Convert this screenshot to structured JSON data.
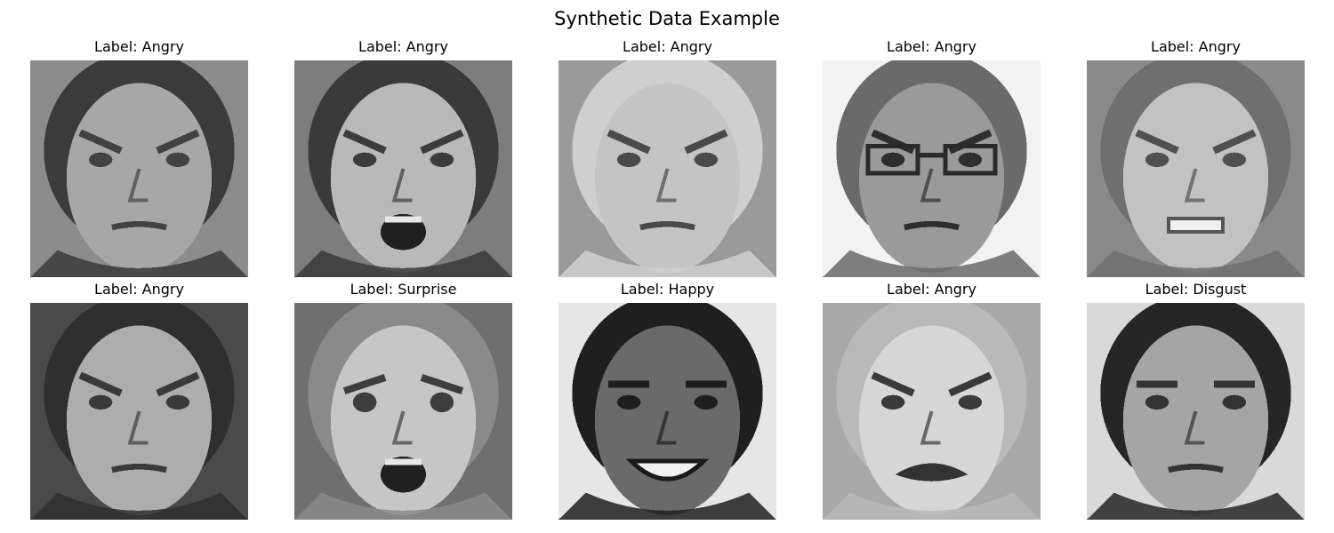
{
  "figure": {
    "title": "Synthetic Data Example"
  },
  "panels": [
    {
      "label": "Label: Angry",
      "tone": "#8c8c8c",
      "face": "#a7a7a7",
      "hair": "#3b3b3b",
      "feature": "#424242",
      "mouth": "closed",
      "glasses": false,
      "expression": "angry"
    },
    {
      "label": "Label: Angry",
      "tone": "#7d7d7d",
      "face": "#b9b9b9",
      "hair": "#3a3a3a",
      "feature": "#3c3c3c",
      "mouth": "open",
      "glasses": false,
      "expression": "angry"
    },
    {
      "label": "Label: Angry",
      "tone": "#9a9a9a",
      "face": "#c4c4c4",
      "hair": "#cfcfcf",
      "feature": "#4a4a4a",
      "mouth": "closed",
      "glasses": false,
      "expression": "angry"
    },
    {
      "label": "Label: Angry",
      "tone": "#f2f2f2",
      "face": "#9a9a9a",
      "hair": "#6a6a6a",
      "feature": "#2e2e2e",
      "mouth": "closed",
      "glasses": true,
      "expression": "angry"
    },
    {
      "label": "Label: Angry",
      "tone": "#8a8a8a",
      "face": "#c2c2c2",
      "hair": "#6f6f6f",
      "feature": "#505050",
      "mouth": "teeth",
      "glasses": false,
      "expression": "angry"
    },
    {
      "label": "Label: Angry",
      "tone": "#4a4a4a",
      "face": "#adadad",
      "hair": "#2f2f2f",
      "feature": "#3a3a3a",
      "mouth": "closed",
      "glasses": false,
      "expression": "angry"
    },
    {
      "label": "Label: Surprise",
      "tone": "#6f6f6f",
      "face": "#c6c6c6",
      "hair": "#8a8a8a",
      "feature": "#3e3e3e",
      "mouth": "open",
      "glasses": false,
      "expression": "surprise"
    },
    {
      "label": "Label: Happy",
      "tone": "#e6e6e6",
      "face": "#6a6a6a",
      "hair": "#1f1f1f",
      "feature": "#1e1e1e",
      "mouth": "smile",
      "glasses": false,
      "expression": "happy"
    },
    {
      "label": "Label: Angry",
      "tone": "#a8a8a8",
      "face": "#d6d6d6",
      "hair": "#b9b9b9",
      "feature": "#3a3a3a",
      "mouth": "crying",
      "glasses": false,
      "expression": "angry"
    },
    {
      "label": "Label: Disgust",
      "tone": "#d9d9d9",
      "face": "#a5a5a5",
      "hair": "#262626",
      "feature": "#333333",
      "mouth": "closed",
      "glasses": false,
      "expression": "neutral"
    }
  ]
}
